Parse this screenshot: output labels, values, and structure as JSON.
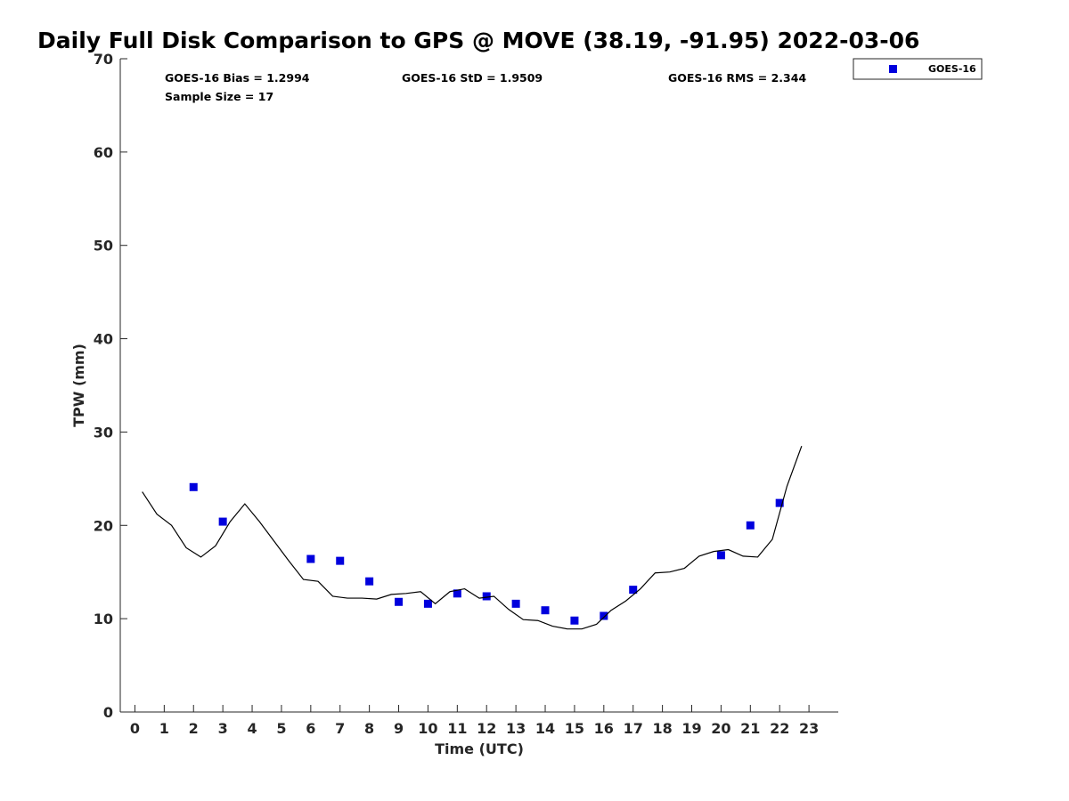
{
  "chart_data": {
    "type": "scatter",
    "title": "Daily Full Disk Comparison to GPS @ MOVE (38.19, -91.95) 2022-03-06",
    "xlabel": "Time (UTC)",
    "ylabel": "TPW (mm)",
    "xlim": [
      -0.5,
      24
    ],
    "ylim": [
      0,
      70
    ],
    "x_ticks": [
      0,
      1,
      2,
      3,
      4,
      5,
      6,
      7,
      8,
      9,
      10,
      11,
      12,
      13,
      14,
      15,
      16,
      17,
      18,
      19,
      20,
      21,
      22,
      23
    ],
    "y_ticks": [
      0,
      10,
      20,
      30,
      40,
      50,
      60,
      70
    ],
    "grid": false,
    "legend_position": "top-right",
    "stats": {
      "bias": "GOES-16 Bias = 1.2994",
      "std": "GOES-16 StD = 1.9509",
      "rms": "GOES-16 RMS = 2.344",
      "sample": "Sample Size = 17"
    },
    "series": [
      {
        "name": "GOES-16",
        "kind": "scatter",
        "color": "#0000dd",
        "marker": "square",
        "x": [
          2,
          3,
          6,
          7,
          8,
          9,
          10,
          11,
          12,
          13,
          14,
          15,
          16,
          17,
          20,
          21,
          22
        ],
        "y": [
          24.1,
          20.4,
          16.4,
          16.2,
          14.0,
          11.8,
          11.6,
          12.7,
          12.4,
          11.6,
          10.9,
          9.8,
          10.3,
          13.1,
          16.8,
          20.0,
          22.4
        ]
      },
      {
        "kind": "line",
        "color": "#000000",
        "x": [
          0.25,
          0.75,
          1.25,
          1.75,
          2.25,
          2.75,
          3.25,
          3.75,
          4.25,
          4.75,
          5.25,
          5.75,
          6.25,
          6.75,
          7.25,
          7.75,
          8.25,
          8.75,
          9.25,
          9.75,
          10.25,
          10.75,
          11.25,
          11.75,
          12.25,
          12.75,
          13.25,
          13.75,
          14.25,
          14.75,
          15.25,
          15.75,
          16.25,
          16.75,
          17.25,
          17.75,
          18.25,
          18.75,
          19.25,
          19.75,
          20.25,
          20.75,
          21.25,
          21.75,
          22.25,
          22.75
        ],
        "y": [
          23.6,
          21.2,
          20.0,
          17.6,
          16.6,
          17.8,
          20.4,
          22.3,
          20.4,
          18.3,
          16.2,
          14.2,
          14.0,
          12.4,
          12.2,
          12.2,
          12.1,
          12.6,
          12.7,
          12.9,
          11.6,
          12.9,
          13.2,
          12.2,
          12.4,
          11.0,
          9.9,
          9.8,
          9.2,
          8.9,
          8.9,
          9.4,
          10.9,
          11.9,
          13.2,
          14.9,
          15.0,
          15.4,
          16.7,
          17.2,
          17.4,
          16.7,
          16.6,
          18.5,
          24.2,
          28.5
        ]
      }
    ]
  }
}
